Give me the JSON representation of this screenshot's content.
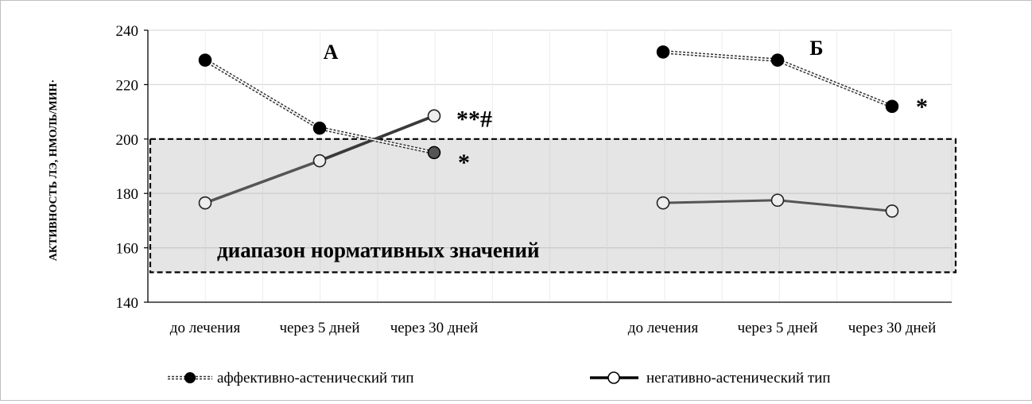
{
  "chart_data": {
    "type": "line",
    "ylabel": "АКТИВНОСТЬ ЛЭ, НМОЛЬ/МИН·",
    "ylim": [
      140,
      240
    ],
    "yticks": [
      140,
      160,
      180,
      200,
      220,
      240
    ],
    "grid": true,
    "categories": [
      "до лечения",
      "через 5 дней",
      "через 30 дней",
      "до лечения",
      "через 5 дней",
      "через 30 дней"
    ],
    "panels": [
      {
        "label": "А",
        "categories": [
          "до лечения",
          "через 5 дней",
          "через 30 дней"
        ],
        "series": [
          {
            "name": "аффективно-астенический тип",
            "values": [
              229,
              204,
              195
            ],
            "style": "dashed",
            "marker": "filled"
          },
          {
            "name": "негативно-астенический тип",
            "values": [
              176.5,
              192,
              208.5
            ],
            "style": "solid",
            "marker": "hollow"
          }
        ],
        "annotations": [
          {
            "text": "**#",
            "series": 1,
            "index": 2
          },
          {
            "text": "*",
            "series": 0,
            "index": 2
          }
        ]
      },
      {
        "label": "Б",
        "categories": [
          "до лечения",
          "через 5 дней",
          "через 30 дней"
        ],
        "series": [
          {
            "name": "аффективно-астенический тип",
            "values": [
              232,
              229,
              212
            ],
            "style": "dashed",
            "marker": "filled"
          },
          {
            "name": "негативно-астенический тип",
            "values": [
              176.5,
              177.5,
              173.5
            ],
            "style": "solid",
            "marker": "hollow"
          }
        ],
        "annotations": [
          {
            "text": "*",
            "series": 0,
            "index": 2
          }
        ]
      }
    ],
    "reference_band": {
      "label": "диапазон нормативных значений",
      "from": 151,
      "to": 200
    },
    "legend": {
      "position": "bottom",
      "entries": [
        "аффективно-астенический тип",
        "негативно-астенический тип"
      ]
    }
  }
}
